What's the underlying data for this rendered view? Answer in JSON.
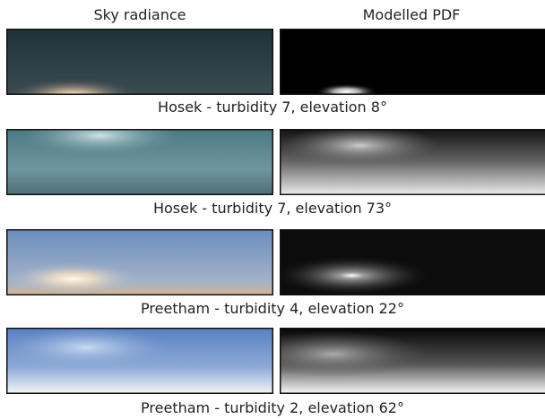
{
  "columns": {
    "left": "Sky radiance",
    "right": "Modelled PDF"
  },
  "rows": [
    {
      "caption": "Hosek - turbidity 7, elevation 8°"
    },
    {
      "caption": "Hosek - turbidity 7, elevation 73°"
    },
    {
      "caption": "Preetham - turbidity 4, elevation 22°"
    },
    {
      "caption": "Preetham - turbidity 2, elevation 62°"
    }
  ]
}
